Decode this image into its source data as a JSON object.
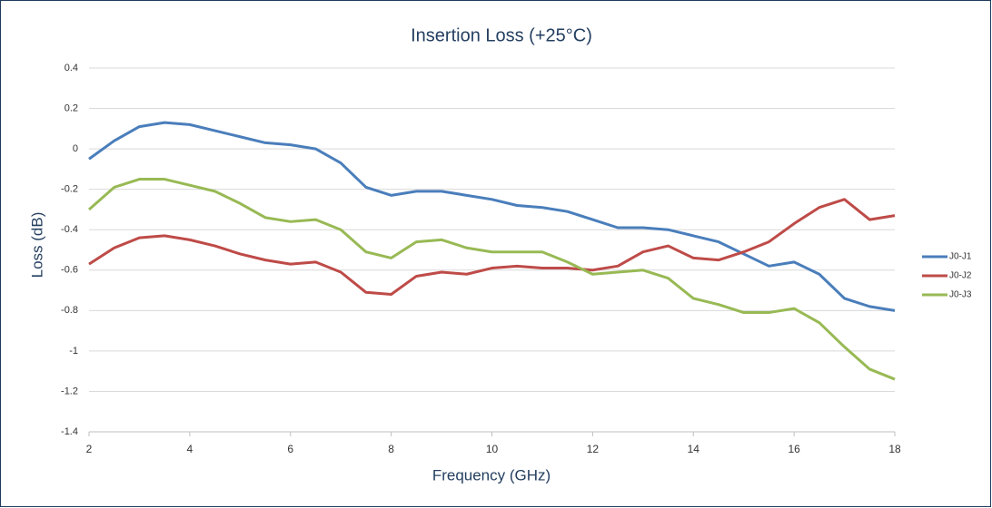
{
  "chart_data": {
    "type": "line",
    "title": "Insertion Loss (+25°C)",
    "xlabel": "Frequency (GHz)",
    "ylabel": "Loss (dB)",
    "x": [
      2,
      2.5,
      3,
      3.5,
      4,
      4.5,
      5,
      5.5,
      6,
      6.5,
      7,
      7.5,
      8,
      8.5,
      9,
      9.5,
      10,
      10.5,
      11,
      11.5,
      12,
      12.5,
      13,
      13.5,
      14,
      14.5,
      15,
      15.5,
      16,
      16.5,
      17,
      17.5,
      18
    ],
    "series": [
      {
        "name": "J0-J1",
        "color": "#4a7ebb",
        "values": [
          -0.05,
          0.04,
          0.11,
          0.13,
          0.12,
          0.09,
          0.06,
          0.03,
          0.02,
          0.0,
          -0.07,
          -0.19,
          -0.23,
          -0.21,
          -0.21,
          -0.23,
          -0.25,
          -0.28,
          -0.29,
          -0.31,
          -0.35,
          -0.39,
          -0.39,
          -0.4,
          -0.43,
          -0.46,
          -0.52,
          -0.58,
          -0.56,
          -0.62,
          -0.74,
          -0.78,
          -0.8
        ]
      },
      {
        "name": "J0-J2",
        "color": "#be4b48",
        "values": [
          -0.57,
          -0.49,
          -0.44,
          -0.43,
          -0.45,
          -0.48,
          -0.52,
          -0.55,
          -0.57,
          -0.56,
          -0.61,
          -0.71,
          -0.72,
          -0.63,
          -0.61,
          -0.62,
          -0.59,
          -0.58,
          -0.59,
          -0.59,
          -0.6,
          -0.58,
          -0.51,
          -0.48,
          -0.54,
          -0.55,
          -0.51,
          -0.46,
          -0.37,
          -0.29,
          -0.25,
          -0.35,
          -0.33
        ]
      },
      {
        "name": "J0-J3",
        "color": "#98b954",
        "values": [
          -0.3,
          -0.19,
          -0.15,
          -0.15,
          -0.18,
          -0.21,
          -0.27,
          -0.34,
          -0.36,
          -0.35,
          -0.4,
          -0.51,
          -0.54,
          -0.46,
          -0.45,
          -0.49,
          -0.51,
          -0.51,
          -0.51,
          -0.56,
          -0.62,
          -0.61,
          -0.6,
          -0.64,
          -0.74,
          -0.77,
          -0.81,
          -0.81,
          -0.79,
          -0.86,
          -0.98,
          -1.09,
          -1.14
        ]
      }
    ],
    "xlim": [
      2,
      18
    ],
    "xticks": [
      2,
      4,
      6,
      8,
      10,
      12,
      14,
      16,
      18
    ],
    "ylim": [
      -1.4,
      0.4
    ],
    "yticks": [
      0.4,
      0.2,
      0,
      -0.2,
      -0.4,
      -0.6,
      -0.8,
      -1,
      -1.2,
      -1.4
    ],
    "grid": true,
    "legend": "right"
  }
}
